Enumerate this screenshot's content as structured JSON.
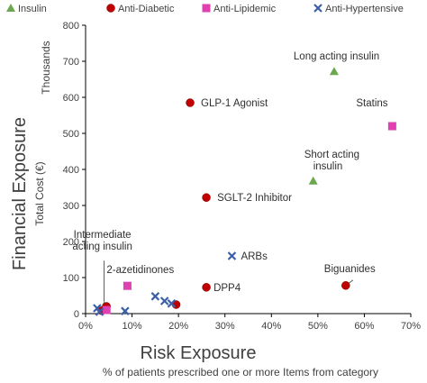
{
  "chart_data": {
    "type": "scatter",
    "title": "",
    "xlabel": "Risk Exposure",
    "xlabel_sub": "% of patients prescribed one or more Items from category",
    "ylabel": "Financial Exposure",
    "ylabel_sub": "Total Cost (€)",
    "y_units": "Thousands",
    "xlim": [
      0,
      70
    ],
    "ylim": [
      0,
      800
    ],
    "x_ticks": [
      "0%",
      "10%",
      "20%",
      "30%",
      "40%",
      "50%",
      "60%",
      "70%"
    ],
    "y_ticks": [
      "0",
      "100",
      "200",
      "300",
      "400",
      "500",
      "600",
      "700",
      "800"
    ],
    "grid": false,
    "legend_position": "top",
    "colors": {
      "Insulin": "#6aa84f",
      "Anti-Diabetic": "#c00000",
      "Anti-Lipidemic": "#e040b0",
      "Anti-Hypertensive": "#3a5fa8"
    },
    "series": [
      {
        "name": "Insulin",
        "marker": "triangle",
        "points": [
          {
            "x": 53.5,
            "y": 672,
            "label": "Long acting insulin"
          },
          {
            "x": 49,
            "y": 368,
            "label": "Short acting insulin"
          },
          {
            "x": 4,
            "y": 22,
            "label": "Intermediate acting insulin"
          }
        ]
      },
      {
        "name": "Anti-Diabetic",
        "marker": "circle",
        "points": [
          {
            "x": 22.5,
            "y": 585,
            "label": "GLP-1 Agonist"
          },
          {
            "x": 26,
            "y": 322,
            "label": "SGLT-2 Inhibitor"
          },
          {
            "x": 56,
            "y": 78,
            "label": "Biguanides"
          },
          {
            "x": 26,
            "y": 73,
            "label": "DPP4"
          },
          {
            "x": 19.5,
            "y": 25,
            "label": ""
          },
          {
            "x": 3.5,
            "y": 8,
            "label": ""
          },
          {
            "x": 4.5,
            "y": 20,
            "label": ""
          }
        ]
      },
      {
        "name": "Anti-Lipidemic",
        "marker": "square",
        "points": [
          {
            "x": 66,
            "y": 520,
            "label": "Statins"
          },
          {
            "x": 9,
            "y": 77,
            "label": "2-azetidinones"
          },
          {
            "x": 4.5,
            "y": 10,
            "label": ""
          }
        ]
      },
      {
        "name": "Anti-Hypertensive",
        "marker": "x",
        "points": [
          {
            "x": 31.5,
            "y": 160,
            "label": "ARBs"
          },
          {
            "x": 15,
            "y": 48,
            "label": ""
          },
          {
            "x": 17,
            "y": 35,
            "label": ""
          },
          {
            "x": 18.5,
            "y": 28,
            "label": ""
          },
          {
            "x": 2.5,
            "y": 15,
            "label": ""
          },
          {
            "x": 3,
            "y": 5,
            "label": ""
          },
          {
            "x": 8.5,
            "y": 7,
            "label": ""
          }
        ]
      }
    ],
    "annotations": [
      {
        "text": "Long acting insulin",
        "series": 0,
        "point": 0
      },
      {
        "text": "Short acting",
        "text2": "insulin",
        "series": 0,
        "point": 1
      },
      {
        "text": "Intermediate",
        "text2": "acting insulin",
        "series": 0,
        "point": 2
      },
      {
        "text": "GLP-1 Agonist",
        "series": 1,
        "point": 0
      },
      {
        "text": "SGLT-2 Inhibitor",
        "series": 1,
        "point": 1
      },
      {
        "text": "Biguanides",
        "series": 1,
        "point": 2
      },
      {
        "text": "DPP4",
        "series": 1,
        "point": 3
      },
      {
        "text": "Statins",
        "series": 2,
        "point": 0
      },
      {
        "text": "2-azetidinones",
        "series": 2,
        "point": 1
      },
      {
        "text": "ARBs",
        "series": 3,
        "point": 0
      }
    ]
  }
}
